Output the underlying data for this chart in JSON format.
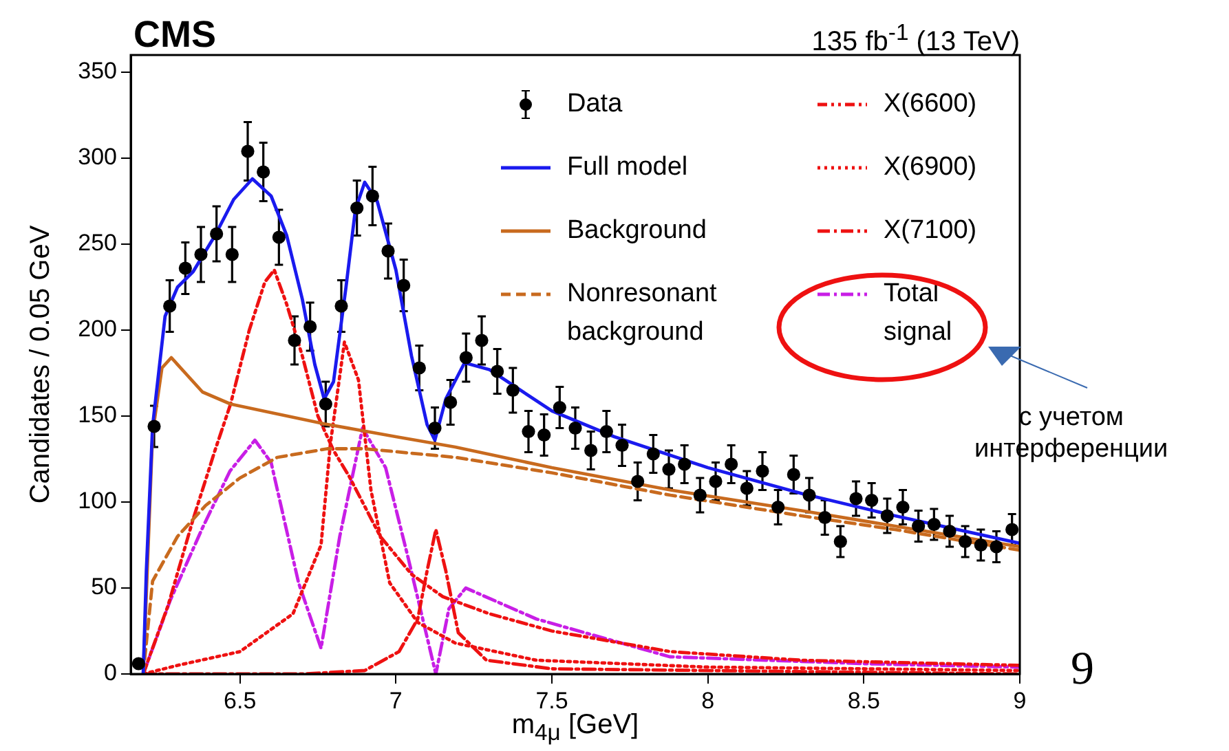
{
  "chart_data": {
    "type": "scatter",
    "title": "CMS",
    "subtitle": "135 fb$^{-1}$ (13 TeV)",
    "xlabel": "m$_{4μ}$ [GeV]",
    "ylabel": "Candidates / 0.05 GeV",
    "xlim": [
      6.15,
      9
    ],
    "xticks": [
      6.5,
      7,
      7.5,
      8,
      8.5,
      9
    ],
    "ylim": [
      0,
      360
    ],
    "yticks": [
      0,
      50,
      100,
      150,
      200,
      250,
      300,
      350
    ],
    "grid": false,
    "legend": "top right",
    "annotations": [
      "с учетом\nинтерференции",
      "9"
    ],
    "series": [
      {
        "name": "Data",
        "type": "scatter",
        "color": "#000000",
        "marker": "circle",
        "x": [
          6.175,
          6.225,
          6.275,
          6.325,
          6.375,
          6.425,
          6.475,
          6.525,
          6.575,
          6.625,
          6.675,
          6.725,
          6.775,
          6.825,
          6.875,
          6.925,
          6.975,
          7.025,
          7.075,
          7.125,
          7.175,
          7.225,
          7.275,
          7.325,
          7.375,
          7.425,
          7.475,
          7.525,
          7.575,
          7.625,
          7.675,
          7.725,
          7.775,
          7.825,
          7.875,
          7.925,
          7.975,
          8.025,
          8.075,
          8.125,
          8.175,
          8.225,
          8.275,
          8.325,
          8.375,
          8.425,
          8.475,
          8.525,
          8.575,
          8.625,
          8.675,
          8.725,
          8.775,
          8.825,
          8.875,
          8.925,
          8.975
        ],
        "values": [
          6,
          144,
          214,
          236,
          244,
          256,
          244,
          304,
          292,
          254,
          194,
          202,
          157,
          214,
          271,
          278,
          246,
          226,
          178,
          143,
          158,
          184,
          194,
          176,
          165,
          141,
          139,
          155,
          143,
          130,
          141,
          133,
          112,
          128,
          119,
          122,
          104,
          112,
          122,
          108,
          118,
          97,
          116,
          104,
          91,
          77,
          102,
          101,
          92,
          97,
          86,
          87,
          83,
          77,
          75,
          74,
          84
        ],
        "errors": [
          null,
          12,
          15,
          15,
          16,
          16,
          16,
          17,
          17,
          16,
          14,
          14,
          13,
          15,
          16,
          17,
          16,
          15,
          13,
          12,
          13,
          14,
          14,
          13,
          13,
          12,
          12,
          12,
          12,
          11,
          12,
          12,
          11,
          11,
          11,
          11,
          10,
          11,
          11,
          10,
          11,
          10,
          11,
          10,
          10,
          9,
          10,
          10,
          10,
          10,
          9,
          9,
          9,
          9,
          9,
          9,
          9
        ]
      },
      {
        "name": "Full model",
        "type": "line",
        "color": "#1a1aee",
        "marker": "none",
        "line_style": "solid",
        "x": [
          6.19,
          6.2,
          6.22,
          6.26,
          6.3,
          6.35,
          6.42,
          6.48,
          6.54,
          6.6,
          6.65,
          6.7,
          6.74,
          6.77,
          6.8,
          6.84,
          6.87,
          6.9,
          6.94,
          7.0,
          7.05,
          7.1,
          7.125,
          7.16,
          7.22,
          7.3,
          7.4,
          7.5,
          7.7,
          8.0,
          8.3,
          8.6,
          9.0
        ],
        "values": [
          0,
          60,
          144,
          208,
          225,
          234,
          255,
          276,
          288,
          278,
          255,
          218,
          180,
          160,
          170,
          225,
          270,
          286,
          275,
          235,
          185,
          145,
          136,
          160,
          181,
          177,
          165,
          153,
          138,
          120,
          105,
          92,
          76
        ]
      },
      {
        "name": "Background",
        "type": "line",
        "color": "#c86a1e",
        "marker": "none",
        "line_style": "solid",
        "x": [
          6.19,
          6.22,
          6.25,
          6.28,
          6.32,
          6.38,
          6.47,
          6.6,
          6.77,
          7.0,
          7.19,
          7.5,
          7.88,
          8.3,
          8.6,
          9.0
        ],
        "values": [
          0,
          140,
          178,
          184,
          176,
          164,
          157,
          152,
          145.5,
          138,
          132,
          120,
          107,
          95,
          86,
          74
        ]
      },
      {
        "name": "Nonresonant\nbackground",
        "type": "line",
        "color": "#c86a1e",
        "marker": "none",
        "line_style": "dashed",
        "x": [
          6.19,
          6.22,
          6.3,
          6.39,
          6.5,
          6.62,
          6.78,
          6.9,
          7.19,
          7.5,
          7.88,
          8.3,
          8.6,
          9.0
        ],
        "values": [
          0,
          54,
          80,
          98,
          114,
          126,
          131,
          131,
          126,
          117,
          104,
          92,
          84,
          72
        ]
      },
      {
        "name": "X(6600)",
        "type": "line",
        "color": "#ee1111",
        "marker": "none",
        "line_style": "dashdotdot",
        "x": [
          6.19,
          6.27,
          6.35,
          6.42,
          6.47,
          6.53,
          6.58,
          6.61,
          6.65,
          6.7,
          6.75,
          6.8,
          6.85,
          6.95,
          7.05,
          7.15,
          7.3,
          7.5,
          7.88,
          8.3,
          9.0
        ],
        "values": [
          0,
          40,
          90,
          130,
          157,
          200,
          228,
          235,
          215,
          185,
          150,
          130,
          115,
          80,
          58,
          45,
          35,
          25,
          13,
          8,
          5
        ]
      },
      {
        "name": "X(6900)",
        "type": "line",
        "color": "#ee1111",
        "marker": "none",
        "line_style": "dotted",
        "x": [
          6.19,
          6.3,
          6.5,
          6.67,
          6.76,
          6.79,
          6.835,
          6.88,
          6.92,
          6.98,
          7.07,
          7.19,
          7.45,
          8.0,
          9.0
        ],
        "values": [
          0,
          5,
          13,
          35,
          75,
          134,
          193,
          171,
          107,
          53,
          30,
          18,
          8,
          4,
          2
        ]
      },
      {
        "name": "X(7100)",
        "type": "line",
        "color": "#ee1111",
        "marker": "none",
        "line_style": "dashdot",
        "x": [
          6.19,
          6.7,
          6.9,
          7.01,
          7.07,
          7.1,
          7.128,
          7.16,
          7.2,
          7.29,
          7.5,
          9.0
        ],
        "values": [
          0,
          0,
          2,
          13,
          32,
          60,
          84,
          60,
          24,
          8,
          3,
          0
        ]
      },
      {
        "name": "Total\nsignal",
        "type": "line",
        "color": "#c81ee6",
        "marker": "none",
        "line_style": "dashdot",
        "x": [
          6.19,
          6.277,
          6.38,
          6.468,
          6.548,
          6.6,
          6.688,
          6.76,
          6.82,
          6.893,
          6.967,
          7.04,
          7.128,
          7.17,
          7.224,
          7.45,
          7.878,
          8.5,
          9.0
        ],
        "values": [
          0,
          43,
          85,
          118,
          136,
          123,
          53,
          15,
          80,
          143,
          120,
          67,
          0,
          38,
          50,
          32,
          10,
          6,
          4
        ]
      }
    ]
  }
}
